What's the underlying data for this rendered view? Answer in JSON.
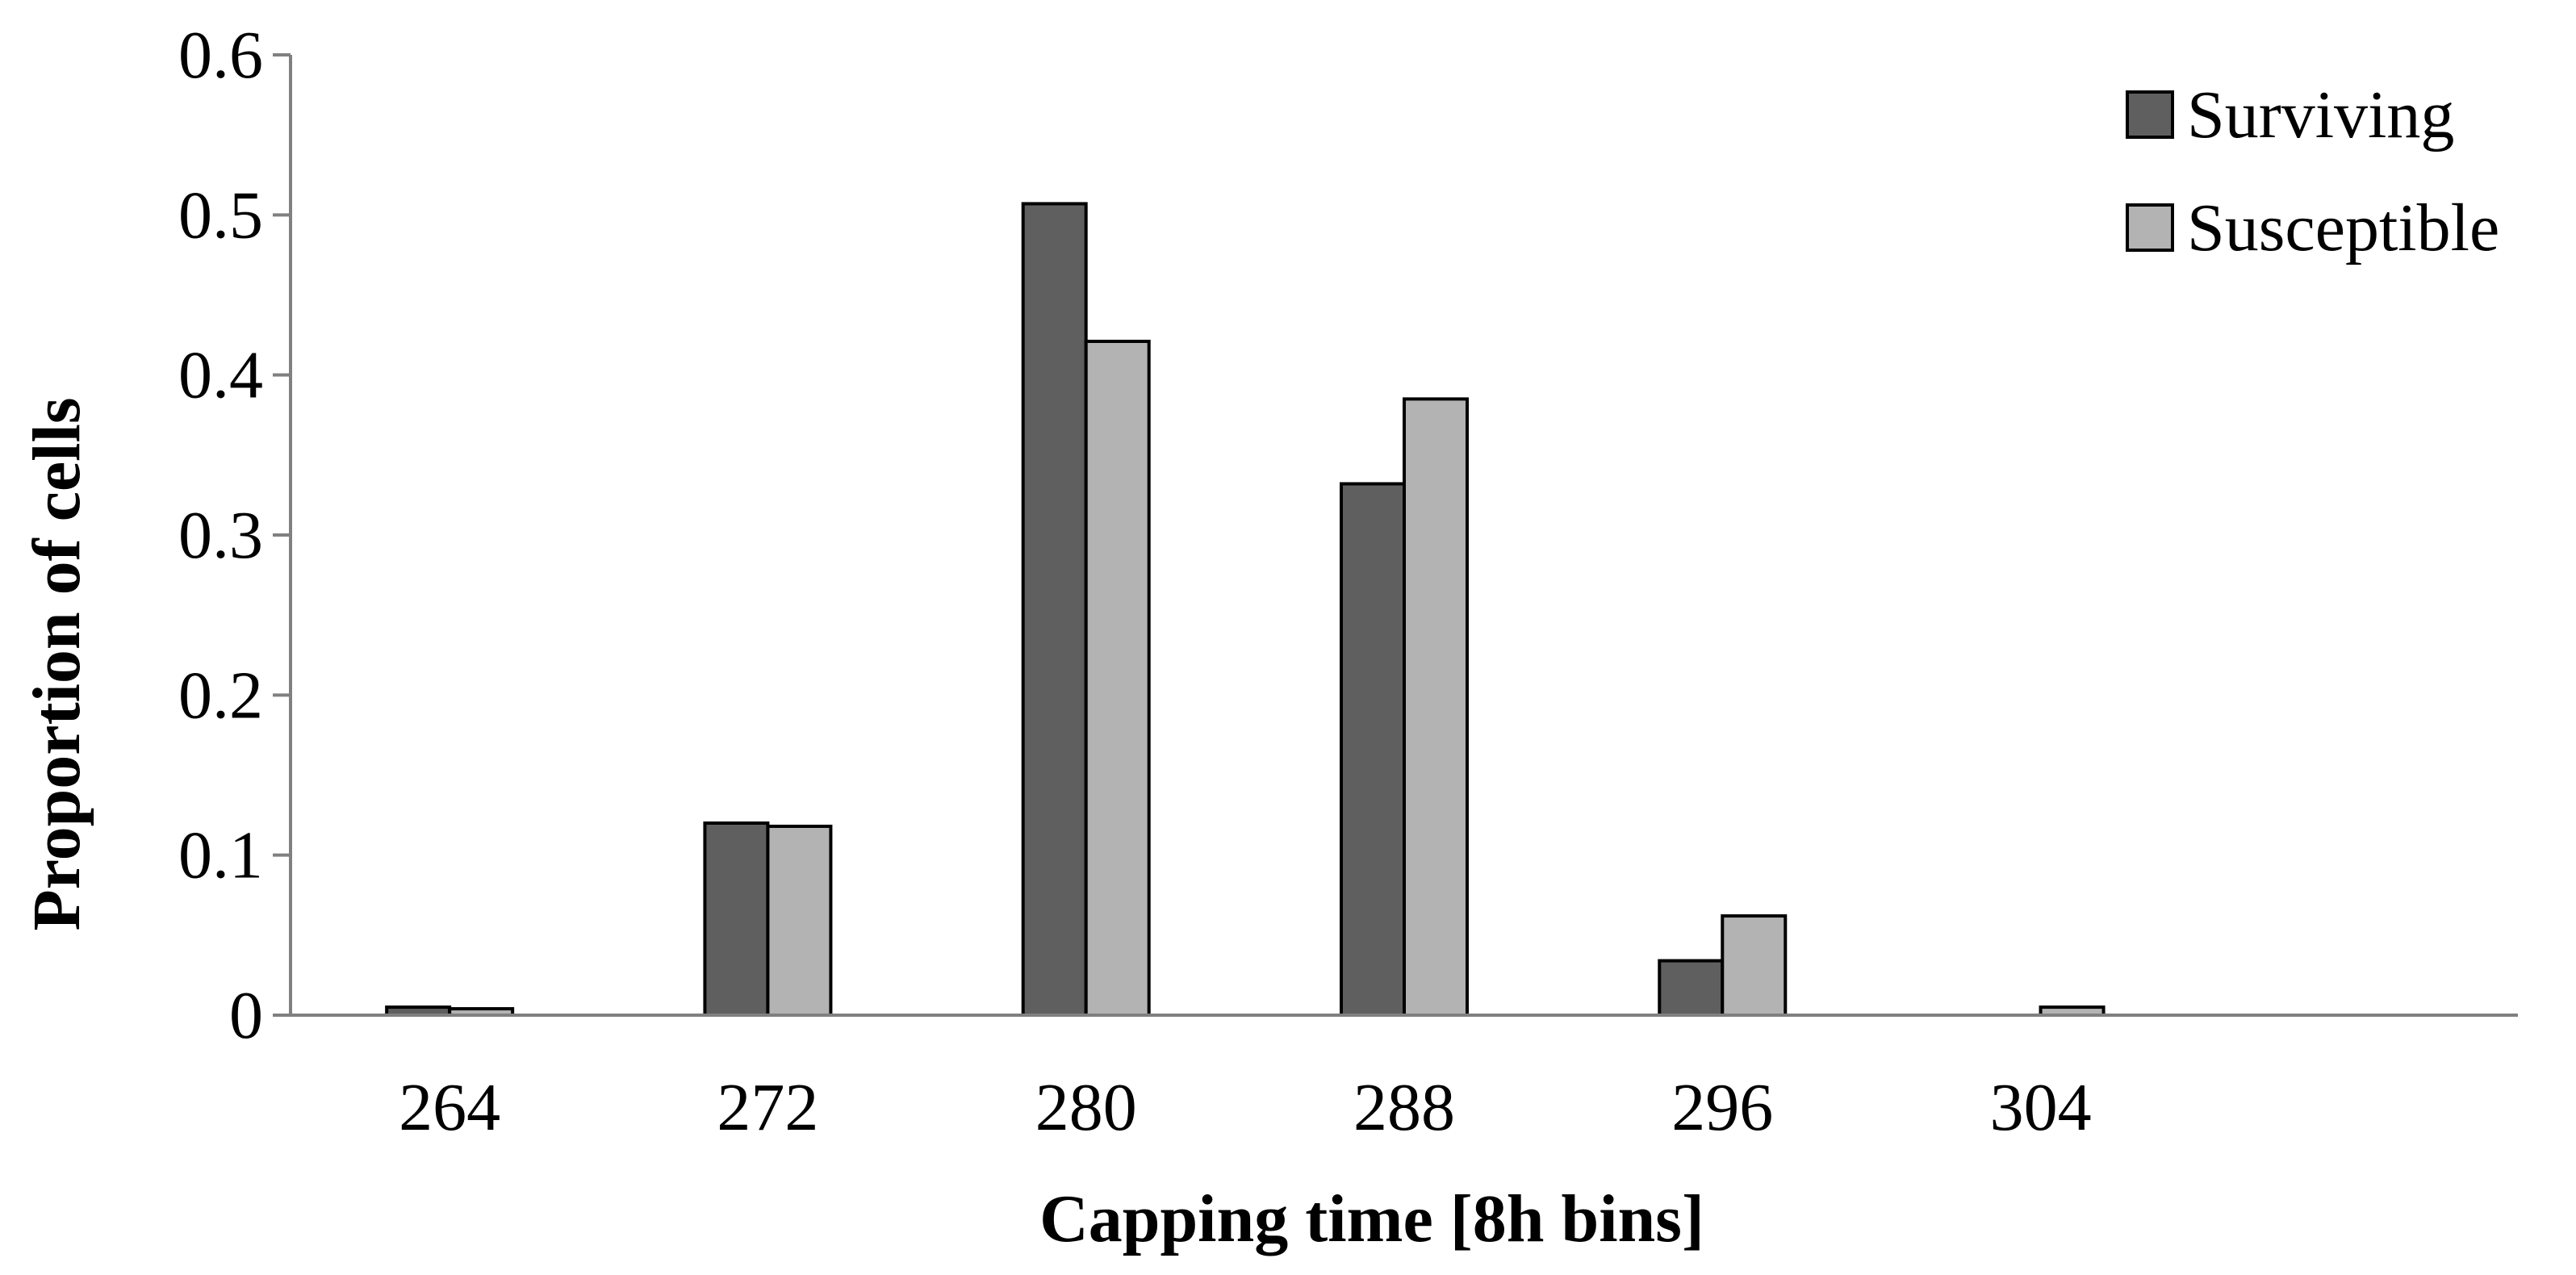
{
  "chart_data": {
    "type": "bar",
    "title": "",
    "xlabel": "Capping time [8h bins]",
    "ylabel": "Proportion of cells",
    "categories": [
      "264",
      "272",
      "280",
      "288",
      "296",
      "304",
      ""
    ],
    "series": [
      {
        "name": "Surviving",
        "color": "#5f5f5f",
        "values": [
          0.005,
          0.12,
          0.507,
          0.332,
          0.034,
          0,
          0
        ]
      },
      {
        "name": "Susceptible",
        "color": "#b3b3b3",
        "values": [
          0.004,
          0.118,
          0.421,
          0.385,
          0.062,
          0.005,
          0
        ]
      }
    ],
    "ylim": [
      0,
      0.6
    ],
    "yticks": [
      "0",
      "0.1",
      "0.2",
      "0.3",
      "0.4",
      "0.5",
      "0.6"
    ],
    "grid": false,
    "legend": "top-right"
  }
}
